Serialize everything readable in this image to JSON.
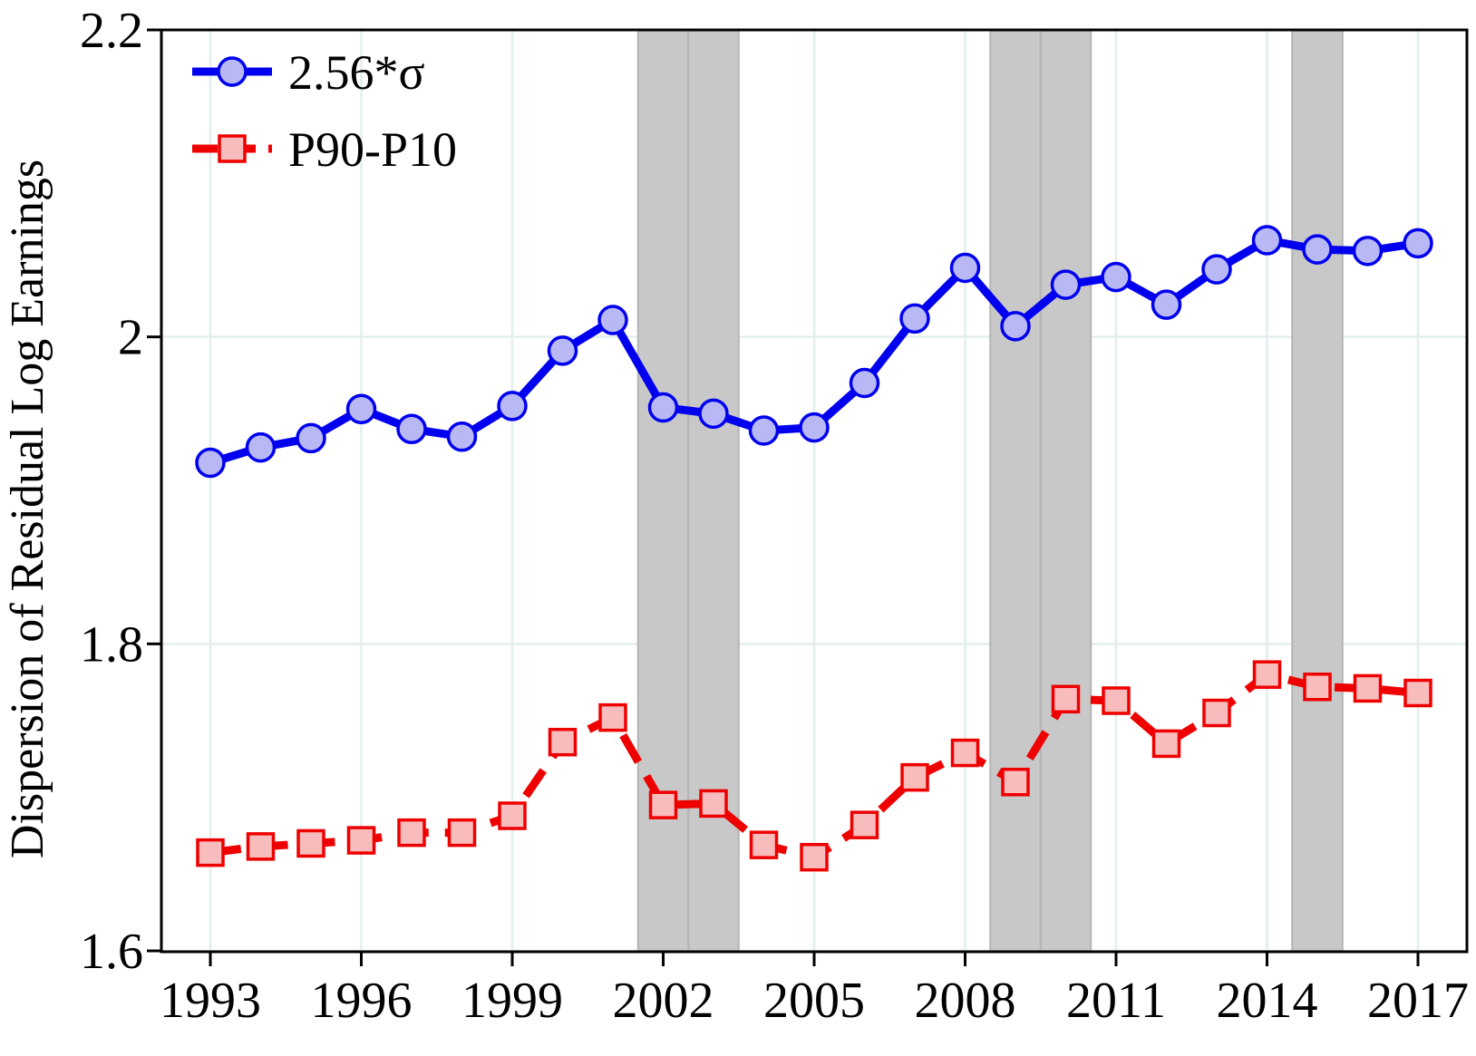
{
  "chart_data": {
    "type": "line",
    "title": "",
    "xlabel": "",
    "ylabel": "Dispersion of Residual Log Earnings",
    "xlim": [
      1993,
      2017
    ],
    "ylim": [
      1.6,
      2.2
    ],
    "x_ticks": [
      "1993",
      "1996",
      "1999",
      "2002",
      "2005",
      "2008",
      "2011",
      "2014",
      "2017"
    ],
    "y_ticks": [
      "1.6",
      "1.8",
      "2",
      "2.2"
    ],
    "grid": true,
    "legend_position": "top-left",
    "x": [
      1993,
      1994,
      1995,
      1996,
      1997,
      1998,
      1999,
      2000,
      2001,
      2002,
      2003,
      2004,
      2005,
      2006,
      2007,
      2008,
      2009,
      2010,
      2011,
      2012,
      2013,
      2014,
      2015,
      2016,
      2017
    ],
    "series": [
      {
        "name": "2.56*σ",
        "color": "#0000ee",
        "marker": "circle",
        "marker_fill": "#b8b8f4",
        "line_style": "solid",
        "values": [
          1.918,
          1.928,
          1.934,
          1.953,
          1.94,
          1.935,
          1.955,
          1.991,
          2.011,
          1.954,
          1.95,
          1.939,
          1.941,
          1.97,
          2.012,
          2.045,
          2.007,
          2.034,
          2.039,
          2.021,
          2.044,
          2.063,
          2.057,
          2.056,
          2.061
        ]
      },
      {
        "name": "P90-P10",
        "color": "#ee0000",
        "marker": "square",
        "marker_fill": "#f8bcbc",
        "line_style": "dashed",
        "values": [
          1.664,
          1.668,
          1.67,
          1.672,
          1.677,
          1.677,
          1.688,
          1.736,
          1.752,
          1.695,
          1.696,
          1.669,
          1.661,
          1.682,
          1.713,
          1.729,
          1.71,
          1.764,
          1.763,
          1.735,
          1.755,
          1.78,
          1.772,
          1.771,
          1.768
        ]
      }
    ],
    "shaded_periods": [
      [
        2001.5,
        2002.5
      ],
      [
        2002.5,
        2003.5
      ],
      [
        2008.5,
        2009.5
      ],
      [
        2009.5,
        2010.5
      ],
      [
        2014.5,
        2015.5
      ]
    ]
  }
}
